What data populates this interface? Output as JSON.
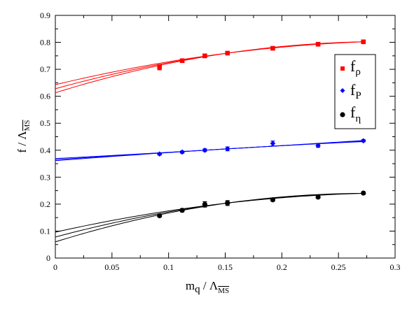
{
  "chart_data": {
    "type": "scatter",
    "xlabel": {
      "main": "m",
      "sub": "q",
      "sep": " / ",
      "lambda": "Λ",
      "lambda_sub": "MS"
    },
    "ylabel": {
      "main": "f",
      "sep": " / ",
      "lambda": "Λ",
      "lambda_sub": "MS"
    },
    "xlim": [
      0,
      0.3
    ],
    "ylim": [
      0,
      0.9
    ],
    "xticks": [
      0,
      0.05,
      0.1,
      0.15,
      0.2,
      0.25,
      0.3
    ],
    "xtick_labels": [
      "0",
      "0.05",
      "0.1",
      "0.15",
      "0.2",
      "0.25",
      "0.3"
    ],
    "yticks": [
      0,
      0.1,
      0.2,
      0.3,
      0.4,
      0.5,
      0.6,
      0.7,
      0.8,
      0.9
    ],
    "ytick_labels": [
      "0",
      "0.1",
      "0.2",
      "0.3",
      "0.4",
      "0.5",
      "0.6",
      "0.7",
      "0.8",
      "0.9"
    ],
    "grid": false,
    "legend_position": "right",
    "series": [
      {
        "name": "f_rho",
        "legend_main": "f",
        "legend_sub": "ρ",
        "marker": "square",
        "color": "#ff0000",
        "points": [
          {
            "x": 0.092,
            "y": 0.708,
            "err": 0.01
          },
          {
            "x": 0.112,
            "y": 0.732,
            "err": 0.005
          },
          {
            "x": 0.132,
            "y": 0.75,
            "err": 0.007
          },
          {
            "x": 0.152,
            "y": 0.76,
            "err": 0.004
          },
          {
            "x": 0.192,
            "y": 0.778,
            "err": 0.004
          },
          {
            "x": 0.232,
            "y": 0.793,
            "err": 0.003
          },
          {
            "x": 0.272,
            "y": 0.802,
            "err": 0.004
          }
        ],
        "fits": [
          {
            "y0": 0.613,
            "y_end": 0.802
          },
          {
            "y0": 0.628,
            "y_end": 0.802
          },
          {
            "y0": 0.643,
            "y_end": 0.802
          }
        ]
      },
      {
        "name": "f_P",
        "legend_main": "f",
        "legend_sub": "P",
        "marker": "diamond",
        "color": "#0000ff",
        "points": [
          {
            "x": 0.092,
            "y": 0.386,
            "err": 0.004
          },
          {
            "x": 0.112,
            "y": 0.393,
            "err": 0.004
          },
          {
            "x": 0.132,
            "y": 0.4,
            "err": 0.005
          },
          {
            "x": 0.152,
            "y": 0.405,
            "err": 0.007
          },
          {
            "x": 0.192,
            "y": 0.425,
            "err": 0.009
          },
          {
            "x": 0.232,
            "y": 0.417,
            "err": 0.006
          },
          {
            "x": 0.272,
            "y": 0.435,
            "err": 0.004
          }
        ],
        "fits": [
          {
            "y0": 0.361,
            "y_end": 0.432
          },
          {
            "y0": 0.365,
            "y_end": 0.434
          },
          {
            "y0": 0.369,
            "y_end": 0.436
          }
        ]
      },
      {
        "name": "f_eta",
        "legend_main": "f",
        "legend_sub": "η",
        "marker": "circle",
        "color": "#000000",
        "points": [
          {
            "x": 0.092,
            "y": 0.157,
            "err": 0.005
          },
          {
            "x": 0.112,
            "y": 0.177,
            "err": 0.006
          },
          {
            "x": 0.132,
            "y": 0.199,
            "err": 0.01
          },
          {
            "x": 0.152,
            "y": 0.204,
            "err": 0.009
          },
          {
            "x": 0.192,
            "y": 0.216,
            "err": 0.005
          },
          {
            "x": 0.232,
            "y": 0.226,
            "err": 0.005
          },
          {
            "x": 0.272,
            "y": 0.241,
            "err": 0.004
          }
        ],
        "fits": [
          {
            "y0": 0.06,
            "y_end": 0.24
          },
          {
            "y0": 0.078,
            "y_end": 0.24
          },
          {
            "y0": 0.096,
            "y_end": 0.24
          }
        ]
      }
    ]
  }
}
